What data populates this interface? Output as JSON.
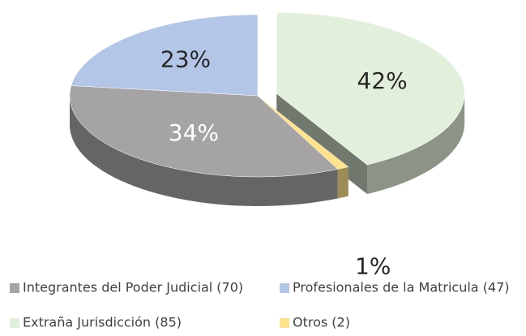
{
  "chart_data": {
    "type": "pie",
    "categories": [
      "Integrantes del Poder Judicial (70)",
      "Profesionales de la Matricula (47)",
      "Extraña Jurisdicción (85)",
      "Otros (2)"
    ],
    "values": [
      34,
      23,
      42,
      1
    ],
    "value_labels": [
      "34%",
      "23%",
      "42%",
      "1%"
    ],
    "colors": [
      "#a5a3a3",
      "#b4c6e7",
      "#e2efda",
      "#ffe28a"
    ],
    "explode": [
      false,
      false,
      true,
      false
    ],
    "legend": "bottom"
  }
}
